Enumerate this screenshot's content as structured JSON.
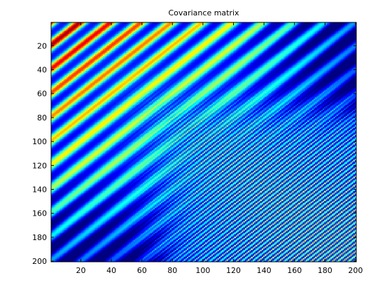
{
  "chart_data": {
    "type": "heatmap",
    "title": "Covariance matrix",
    "xlabel": "",
    "ylabel": "",
    "colormap": "jet",
    "matrix_size": [
      200,
      200
    ],
    "xlim": [
      1,
      200
    ],
    "ylim": [
      1,
      200
    ],
    "y_direction": "reversed",
    "xticks": [
      20,
      40,
      60,
      80,
      100,
      120,
      140,
      160,
      180,
      200
    ],
    "yticks": [
      20,
      40,
      60,
      80,
      100,
      120,
      140,
      160,
      180,
      200
    ],
    "xtick_labels": [
      "20",
      "40",
      "60",
      "80",
      "100",
      "120",
      "140",
      "160",
      "180",
      "200"
    ],
    "ytick_labels": [
      "20",
      "40",
      "60",
      "80",
      "100",
      "120",
      "140",
      "160",
      "180",
      "200"
    ],
    "pattern": {
      "description": "Diagonal band structure; broad bands in upper-left, fine stripes in lower-right",
      "low_freq_period": 20,
      "high_freq_period": 3.5,
      "transition_index": 75
    },
    "grid": false,
    "colors": {
      "background": "#ffffff",
      "axis": "#000000",
      "low": "#00008f",
      "high": "#800000"
    }
  }
}
